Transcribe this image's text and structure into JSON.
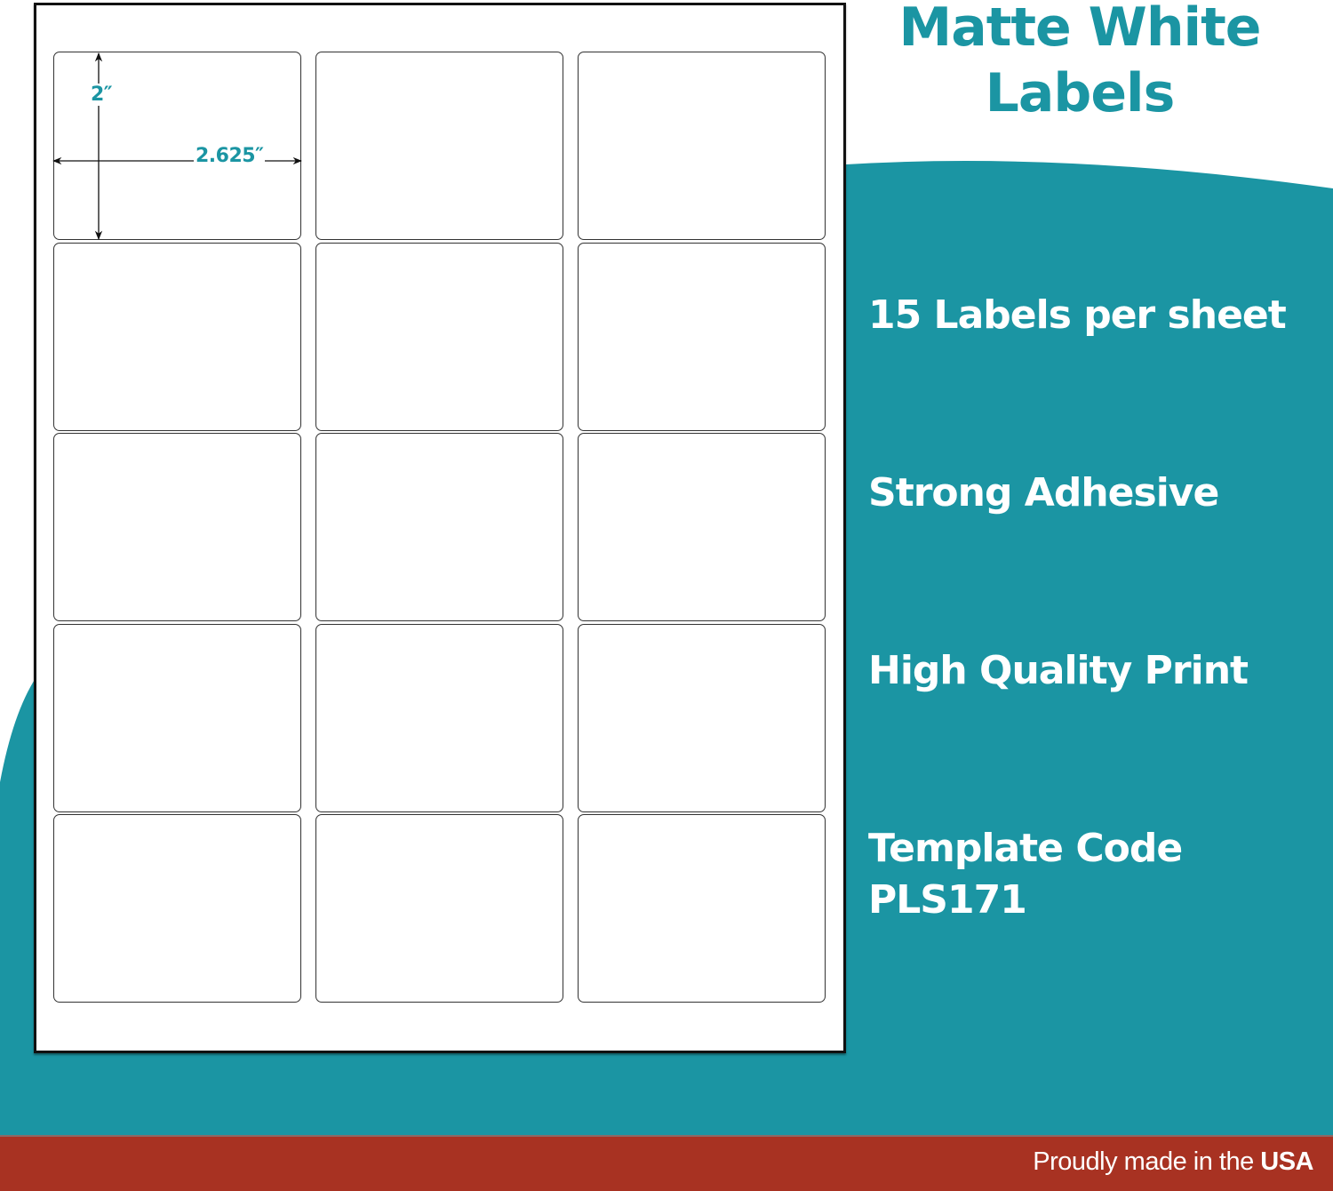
{
  "colors": {
    "teal": "#1b95a3",
    "footer_red": "#a83222",
    "sheet": "#ffffff"
  },
  "title": {
    "line1": "Matte White",
    "line2": "Labels"
  },
  "dimensions": {
    "height": "2″",
    "width": "2.625″"
  },
  "sheet": {
    "rows": 5,
    "columns": 3,
    "label_count": 15
  },
  "features": [
    {
      "text": "15 Labels per sheet"
    },
    {
      "text": "Strong Adhesive"
    },
    {
      "text": "High Quality Print"
    },
    {
      "line1": "Template Code",
      "line2": "PLS171"
    }
  ],
  "footer": {
    "text": "Proudly made in the ",
    "emphasis": "USA"
  }
}
